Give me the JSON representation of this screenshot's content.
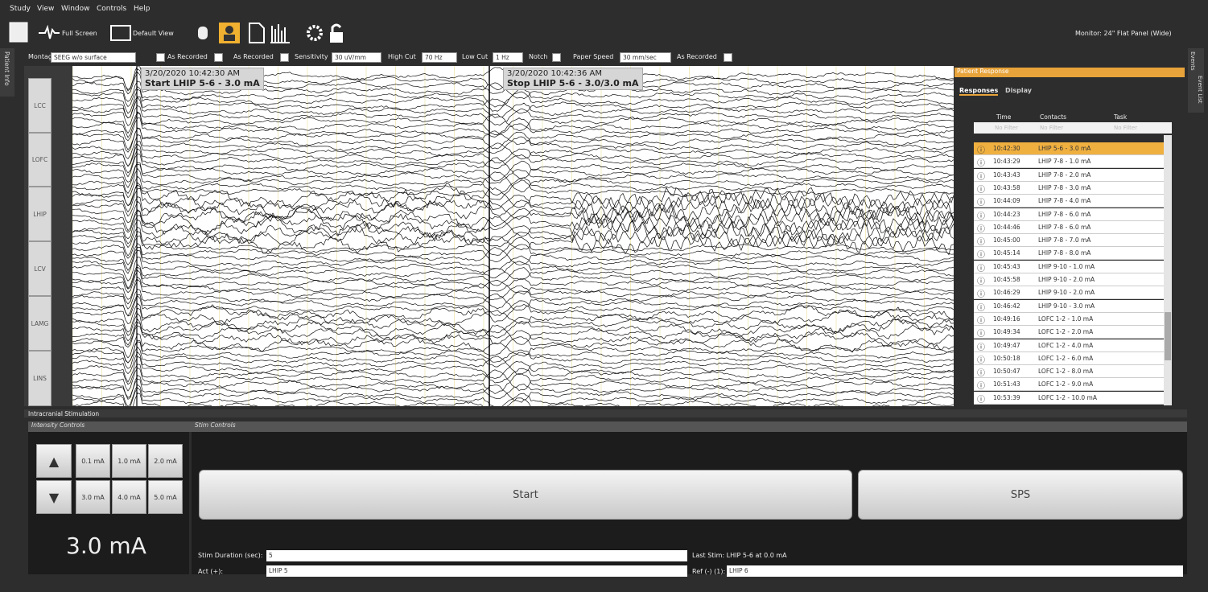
{
  "menu": [
    "Study",
    "View",
    "Window",
    "Controls",
    "Help"
  ],
  "toolbar": {
    "full_screen": "Full Screen",
    "default_view": "Default View",
    "monitor": "Monitor: 24\" Flat Panel (Wide)"
  },
  "side_tabs": {
    "left": "Patient Info",
    "right": [
      "Events",
      "Event List"
    ]
  },
  "options": {
    "montage_label": "Montage",
    "montage": "SEEG w/o surface",
    "as_recorded_1": "As Recorded",
    "as_recorded_2": "As Recorded",
    "sensitivity_label": "Sensitivity",
    "sensitivity": "30 uV/mm",
    "high_cut_label": "High Cut",
    "high_cut": "70 Hz",
    "low_cut_label": "Low Cut",
    "low_cut": "1 Hz",
    "notch_label": "Notch",
    "paper_speed_label": "Paper Speed",
    "paper_speed": "30 mm/sec",
    "as_recorded_3": "As Recorded"
  },
  "channels": [
    "LCC",
    "LOFC",
    "LHIP",
    "LCV",
    "LAMG",
    "LINS"
  ],
  "annotations": [
    {
      "time": "3/20/2020 10:42:30 AM",
      "text": "Start LHIP 5-6 - 3.0 mA"
    },
    {
      "time": "3/20/2020 10:42:36 AM",
      "text": "Stop LHIP 5-6 - 3.0/3.0 mA"
    }
  ],
  "patient_response": {
    "title": "Patient Response",
    "tabs": [
      "Responses",
      "Display"
    ],
    "columns": [
      "Time",
      "Contacts",
      "Task"
    ],
    "filter": "No Filter",
    "rows": [
      [
        "10:42:30",
        "LHIP 5-6 - 3.0 mA"
      ],
      [
        "10:43:29",
        "LHIP 7-8 - 1.0 mA"
      ],
      [
        "10:43:43",
        "LHIP 7-8 - 2.0 mA"
      ],
      [
        "10:43:58",
        "LHIP 7-8 - 3.0 mA"
      ],
      [
        "10:44:09",
        "LHIP 7-8 - 4.0 mA"
      ],
      [
        "10:44:23",
        "LHIP 7-8 - 6.0 mA"
      ],
      [
        "10:44:46",
        "LHIP 7-8 - 6.0 mA"
      ],
      [
        "10:45:00",
        "LHIP 7-8 - 7.0 mA"
      ],
      [
        "10:45:14",
        "LHIP 7-8 - 8.0 mA"
      ],
      [
        "10:45:43",
        "LHIP 9-10 - 1.0 mA"
      ],
      [
        "10:45:58",
        "LHIP 9-10 - 2.0 mA"
      ],
      [
        "10:46:29",
        "LHIP 9-10 - 2.0 mA"
      ],
      [
        "10:46:42",
        "LHIP 9-10 - 3.0 mA"
      ],
      [
        "10:49:16",
        "LOFC 1-2 - 1.0 mA"
      ],
      [
        "10:49:34",
        "LOFC 1-2 - 2.0 mA"
      ],
      [
        "10:49:47",
        "LOFC 1-2 - 4.0 mA"
      ],
      [
        "10:50:18",
        "LOFC 1-2 - 6.0 mA"
      ],
      [
        "10:50:47",
        "LOFC 1-2 - 8.0 mA"
      ],
      [
        "10:51:43",
        "LOFC 1-2 - 9.0 mA"
      ],
      [
        "10:53:39",
        "LOFC 1-2 - 10.0 mA"
      ]
    ]
  },
  "stimulation": {
    "title": "Intracranial Stimulation",
    "intensity_title": "Intensity Controls",
    "stim_title": "Stim Controls",
    "intensity_buttons": [
      "0.1 mA",
      "1.0 mA",
      "2.0 mA",
      "3.0 mA",
      "4.0 mA",
      "5.0 mA"
    ],
    "current": "3.0 mA",
    "start": "Start",
    "sps": "SPS",
    "duration_label": "Stim Duration (sec):",
    "duration": "5",
    "last_stim": "Last Stim: LHIP 5-6 at 0.0 mA",
    "act_label": "Act (+):",
    "act": "LHIP 5",
    "ref_label": "Ref (-) (1):",
    "ref": "LHIP 6"
  }
}
